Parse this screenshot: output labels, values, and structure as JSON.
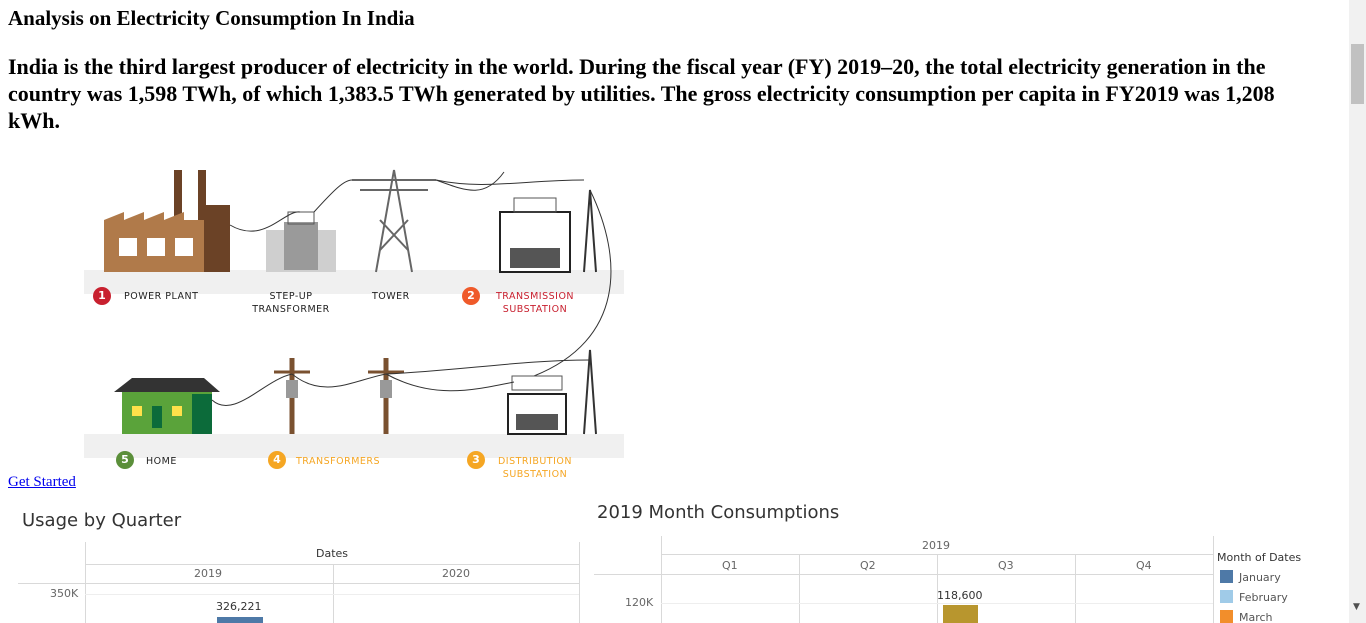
{
  "title": "Analysis on Electricity Consumption In India",
  "intro": "India is the third largest producer of electricity in the world. During the fiscal year (FY) 2019–20, the total electricity generation in the country was 1,598 TWh, of which 1,383.5 TWh generated by utilities. The gross electricity consumption per capita in FY2019 was 1,208 kWh.",
  "diagram": {
    "labels": {
      "power_plant": "POWER PLANT",
      "step_up": "STEP-UP\nTRANSFORMER",
      "tower": "TOWER",
      "transmission": "TRANSMISSION\nSUBSTATION",
      "home": "HOME",
      "transformers": "TRANSFORMERS",
      "distribution": "DISTRIBUTION\nSUBSTATION"
    },
    "badges": {
      "b1": "1",
      "b2": "2",
      "b3": "3",
      "b4": "4",
      "b5": "5"
    },
    "colors": {
      "b1": "#c8202f",
      "b2": "#ef5a2a",
      "b3": "#f5a623",
      "b4": "#f5a623",
      "b5": "#5b8f3a"
    }
  },
  "link": {
    "get_started": "Get Started"
  },
  "usage_by_quarter": {
    "title": "Usage by Quarter",
    "header": "Dates",
    "columns": [
      "2019",
      "2020"
    ],
    "y_tick": "350K",
    "chart_data": {
      "type": "bar",
      "categories": [
        "2019",
        "2020"
      ],
      "values": [
        326221,
        null
      ],
      "data_labels": [
        "326,221",
        ""
      ]
    }
  },
  "month_consumptions": {
    "title": "2019 Month Consumptions",
    "year": "2019",
    "quarters": [
      "Q1",
      "Q2",
      "Q3",
      "Q4"
    ],
    "y_tick": "120K",
    "chart_data": {
      "type": "bar",
      "categories": [
        "Q1",
        "Q2",
        "Q3",
        "Q4"
      ],
      "values": [
        null,
        null,
        118600,
        null
      ],
      "data_labels": [
        "",
        "",
        "118,600",
        ""
      ]
    },
    "legend": {
      "title": "Month of Dates",
      "items": [
        {
          "label": "January",
          "color": "#4e79a7"
        },
        {
          "label": "February",
          "color": "#a0cbe8"
        },
        {
          "label": "March",
          "color": "#f28e2b"
        }
      ]
    },
    "q3_bar_color": "#b8962e"
  }
}
